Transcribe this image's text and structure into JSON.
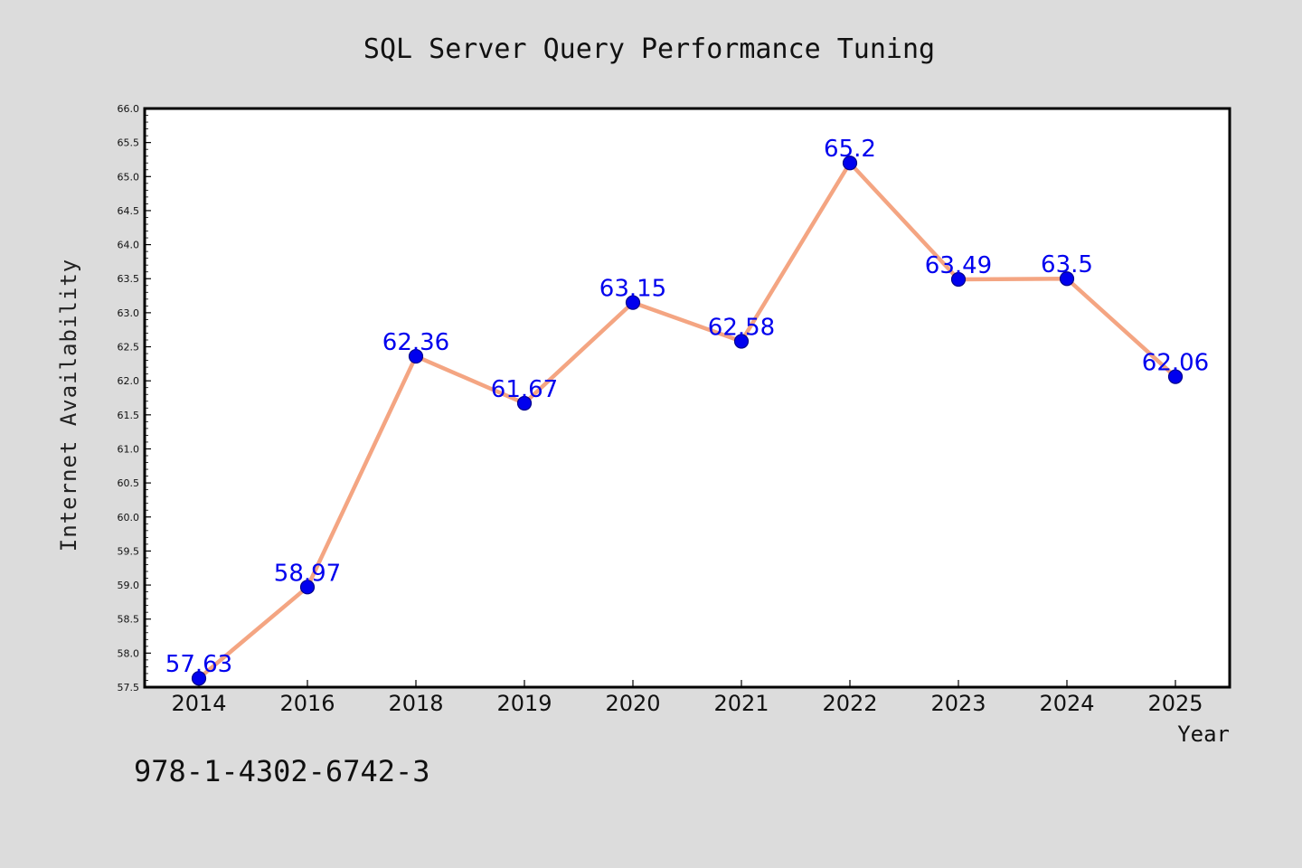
{
  "colors": {
    "background": "#dcdcdc",
    "plot_background": "#ffffff",
    "line": "#f4a582",
    "marker": "#0000ee",
    "marker_edge": "#00008b",
    "data_label": "#0000ee"
  },
  "footer": {
    "isbn": "978-1-4302-6742-3"
  },
  "chart_data": {
    "type": "line",
    "title": "SQL Server Query Performance Tuning",
    "xlabel": "Year",
    "ylabel": "Internet Availability",
    "categories": [
      "2014",
      "2016",
      "2018",
      "2019",
      "2020",
      "2021",
      "2022",
      "2023",
      "2024",
      "2025"
    ],
    "series": [
      {
        "values": [
          57.63,
          58.97,
          62.36,
          61.67,
          63.15,
          62.58,
          65.2,
          63.49,
          63.5,
          62.06
        ]
      }
    ],
    "data_labels": [
      "57.63",
      "58.97",
      "62.36",
      "61.67",
      "63.15",
      "62.58",
      "65.2",
      "63.49",
      "63.5",
      "62.06"
    ],
    "ylim": [
      57.5,
      66.0
    ],
    "yticks": [
      "57.5",
      "58.0",
      "58.5",
      "59.0",
      "59.5",
      "60.0",
      "60.5",
      "61.0",
      "61.5",
      "62.0",
      "62.5",
      "63.0",
      "63.5",
      "64.0",
      "64.5",
      "65.0",
      "65.5",
      "66.0"
    ],
    "ytick_values": [
      57.5,
      58.0,
      58.5,
      59.0,
      59.5,
      60.0,
      60.5,
      61.0,
      61.5,
      62.0,
      62.5,
      63.0,
      63.5,
      64.0,
      64.5,
      65.0,
      65.5,
      66.0
    ],
    "grid": false,
    "legend": "none"
  }
}
